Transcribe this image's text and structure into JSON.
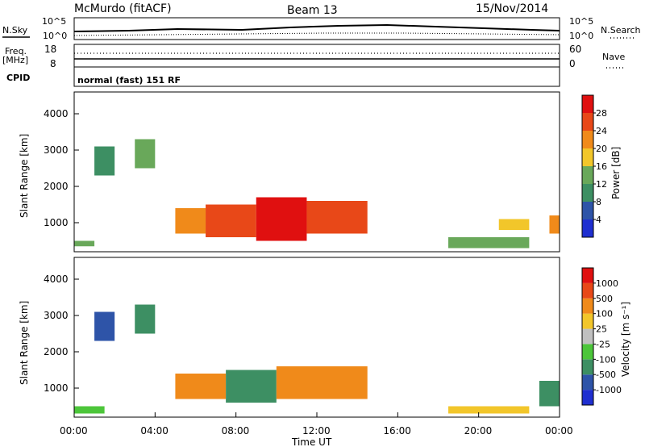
{
  "header": {
    "station": "McMurdo (fitACF)",
    "beam": "Beam 13",
    "date": "15/Nov/2014"
  },
  "summary": {
    "nsky_label": "N.Sky",
    "nsky_ticks": [
      "10^5",
      "10^0"
    ],
    "nsearch_label": "N.Search",
    "nsearch_ticks": [
      "10^5",
      "10^0"
    ],
    "freq_label_top": "Freq.",
    "freq_label_unit": "[MHz]",
    "freq_ticks": [
      "18",
      "8"
    ],
    "nave_label": "Nave",
    "nave_ticks": [
      "60",
      "0"
    ],
    "cpid_label": "CPID",
    "cpid_value": "normal (fast) 151 RF"
  },
  "chart_data": [
    {
      "type": "heatmap",
      "name": "power",
      "ylabel": "Slant Range [km]",
      "yticks": [
        "1000",
        "2000",
        "3000",
        "4000"
      ],
      "ylim": [
        200,
        4600
      ],
      "colorbar_label": "Power [dB]",
      "colorbar_ticks": [
        "4",
        "8",
        "12",
        "16",
        "20",
        "24",
        "28"
      ],
      "colors": [
        "#1f2fd0",
        "#2e54a8",
        "#3d8f63",
        "#69a85a",
        "#f2c62a",
        "#f08a1a",
        "#e84818",
        "#e01010"
      ],
      "bands": [
        {
          "t0": 0.0,
          "t1": 1.0,
          "r0": 350,
          "r1": 500,
          "level": 3
        },
        {
          "t0": 1.0,
          "t1": 2.0,
          "r0": 2300,
          "r1": 3100,
          "level": 2
        },
        {
          "t0": 3.0,
          "t1": 4.0,
          "r0": 2500,
          "r1": 3300,
          "level": 3
        },
        {
          "t0": 5.0,
          "t1": 6.5,
          "r0": 700,
          "r1": 1400,
          "level": 5
        },
        {
          "t0": 6.5,
          "t1": 9.0,
          "r0": 600,
          "r1": 1500,
          "level": 6
        },
        {
          "t0": 9.0,
          "t1": 11.5,
          "r0": 500,
          "r1": 1700,
          "level": 7
        },
        {
          "t0": 11.5,
          "t1": 14.5,
          "r0": 700,
          "r1": 1600,
          "level": 6
        },
        {
          "t0": 18.5,
          "t1": 22.5,
          "r0": 300,
          "r1": 600,
          "level": 3
        },
        {
          "t0": 21.0,
          "t1": 22.5,
          "r0": 800,
          "r1": 1100,
          "level": 4
        },
        {
          "t0": 23.5,
          "t1": 24.0,
          "r0": 700,
          "r1": 1200,
          "level": 5
        }
      ]
    },
    {
      "type": "heatmap",
      "name": "velocity",
      "ylabel": "Slant Range [km]",
      "yticks": [
        "1000",
        "2000",
        "3000",
        "4000"
      ],
      "ylim": [
        200,
        4600
      ],
      "colorbar_label": "Velocity [m s⁻¹]",
      "colorbar_ticks": [
        "1000",
        "500",
        "100",
        "25",
        "-25",
        "-100",
        "-500",
        "-1000"
      ],
      "colors": [
        "#1f2fd0",
        "#2e54a8",
        "#3d8f63",
        "#4cc63a",
        "#c0c0c0",
        "#f2c62a",
        "#f08a1a",
        "#e84818",
        "#e01010"
      ],
      "bands": [
        {
          "t0": 0.0,
          "t1": 1.5,
          "r0": 300,
          "r1": 500,
          "level": 3
        },
        {
          "t0": 1.0,
          "t1": 2.0,
          "r0": 2300,
          "r1": 3100,
          "level": 1
        },
        {
          "t0": 3.0,
          "t1": 4.0,
          "r0": 2500,
          "r1": 3300,
          "level": 2
        },
        {
          "t0": 5.0,
          "t1": 7.5,
          "r0": 700,
          "r1": 1400,
          "level": 6
        },
        {
          "t0": 7.5,
          "t1": 10.0,
          "r0": 600,
          "r1": 1500,
          "level": 2
        },
        {
          "t0": 10.0,
          "t1": 14.5,
          "r0": 700,
          "r1": 1600,
          "level": 6
        },
        {
          "t0": 18.5,
          "t1": 22.5,
          "r0": 300,
          "r1": 500,
          "level": 5
        },
        {
          "t0": 23.0,
          "t1": 24.0,
          "r0": 500,
          "r1": 1200,
          "level": 2
        }
      ]
    }
  ],
  "xaxis": {
    "label": "Time UT",
    "ticks": [
      "00:00",
      "04:00",
      "08:00",
      "12:00",
      "16:00",
      "20:00",
      "00:00"
    ]
  }
}
